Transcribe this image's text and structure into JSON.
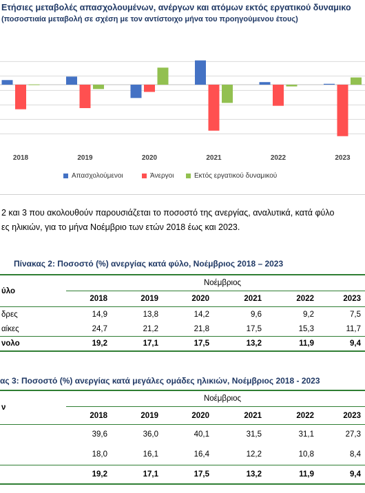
{
  "chart_data": {
    "type": "bar",
    "title": "Ετήσιες μεταβολές απασχολουμένων, ανέργων και ατόμων εκτός εργατικού δυναμικο",
    "subtitle": "(ποσοστιαία μεταβολή σε σχέση με τον αντίστοιχο μήνα του προηγούμενου έτους)",
    "categories": [
      "2018",
      "2019",
      "2020",
      "2021",
      "2022",
      "2023"
    ],
    "series": [
      {
        "name": "Απασχολούμενοι",
        "color": "#4472c4",
        "values": [
          1.6,
          2.8,
          -4.6,
          8.4,
          0.9,
          0.3
        ]
      },
      {
        "name": "Άνεργοι",
        "color": "#ff5050",
        "values": [
          -8.5,
          -8.1,
          -2.5,
          -15.9,
          -7.3,
          -17.8
        ]
      },
      {
        "name": "Εκτός εργατικού δυναμικού",
        "color": "#92c050",
        "values": [
          0.1,
          -1.5,
          5.9,
          -6.3,
          -0.6,
          2.5
        ]
      }
    ],
    "ylim": [
      -22,
      10
    ],
    "grid": true,
    "legend": "bottom"
  },
  "paragraph": {
    "line1": "2 και 3 που ακολουθούν παρουσιάζεται το ποσοστό της ανεργίας, αναλυτικά, κατά φύλο",
    "line2": "ες ηλικιών, για το μήνα Νοέμβριο των ετών 2018 έως και 2023."
  },
  "table2": {
    "title": "Πίνακας 2: Ποσοστό (%) ανεργίας κατά φύλο, Νοέμβριος 2018 – 2023",
    "row_header": "ύλο",
    "group_header": "Νοέμβριος",
    "years": [
      "2018",
      "2019",
      "2020",
      "2021",
      "2022",
      "2023"
    ],
    "rows": [
      {
        "label": "δρες",
        "values": [
          "14,9",
          "13,8",
          "14,2",
          "9,6",
          "9,2",
          "7,5"
        ],
        "bold": false
      },
      {
        "label": "αίκες",
        "values": [
          "24,7",
          "21,2",
          "21,8",
          "17,5",
          "15,3",
          "11,7"
        ],
        "bold": false
      },
      {
        "label": "νολο",
        "values": [
          "19,2",
          "17,1",
          "17,5",
          "13,2",
          "11,9",
          "9,4"
        ],
        "bold": true
      }
    ]
  },
  "table3": {
    "title": "ας 3: Ποσοστό (%) ανεργίας κατά μεγάλες ομάδες ηλικιών, Νοέμβριος 2018 - 2023",
    "row_header": "ν",
    "group_header": "Νοέμβριος",
    "years": [
      "2018",
      "2019",
      "2020",
      "2021",
      "2022",
      "2023"
    ],
    "rows": [
      {
        "label": "",
        "values": [
          "39,6",
          "36,0",
          "40,1",
          "31,5",
          "31,1",
          "27,3"
        ],
        "bold": false
      },
      {
        "label": "",
        "values": [
          "18,0",
          "16,1",
          "16,4",
          "12,2",
          "10,8",
          "8,4"
        ],
        "bold": false
      },
      {
        "label": "",
        "values": [
          "19,2",
          "17,1",
          "17,5",
          "13,2",
          "11,9",
          "9,4"
        ],
        "bold": true
      }
    ]
  }
}
